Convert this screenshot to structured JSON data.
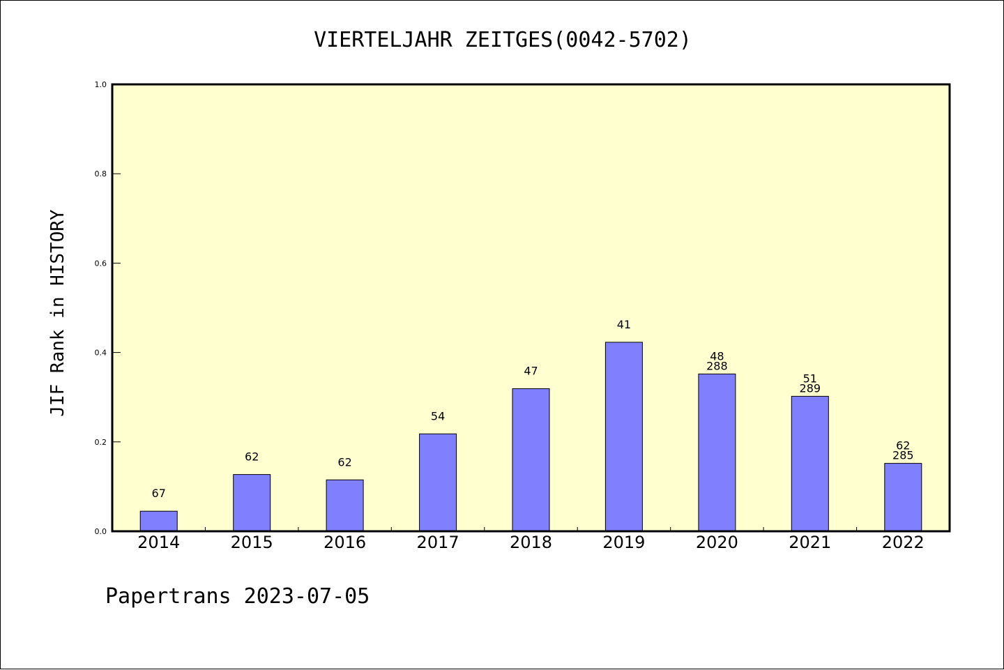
{
  "chart_data": {
    "type": "bar",
    "title": "VIERTELJAHR ZEITGES(0042-5702)",
    "xlabel": "",
    "ylabel": "JIF Rank in HISTORY",
    "ylim": [
      0.0,
      1.0
    ],
    "yticks": [
      "0.0",
      "0.2",
      "0.4",
      "0.6",
      "0.8",
      "1.0"
    ],
    "grid": false,
    "categories": [
      "2014",
      "2015",
      "2016",
      "2017",
      "2018",
      "2019",
      "2020",
      "2021",
      "2022"
    ],
    "values": [
      0.045,
      0.127,
      0.115,
      0.218,
      0.319,
      0.423,
      0.352,
      0.302,
      0.152
    ],
    "bar_labels": [
      [
        "67"
      ],
      [
        "62"
      ],
      [
        "62"
      ],
      [
        "54"
      ],
      [
        "47"
      ],
      [
        "41"
      ],
      [
        "48",
        "288"
      ],
      [
        "51",
        "289"
      ],
      [
        "62",
        "285"
      ]
    ],
    "colors": {
      "plot_background": "#ffffd0",
      "bar_fill": "#8080ff",
      "bar_stroke": "#000000"
    }
  },
  "footer": "Papertrans 2023-07-05"
}
